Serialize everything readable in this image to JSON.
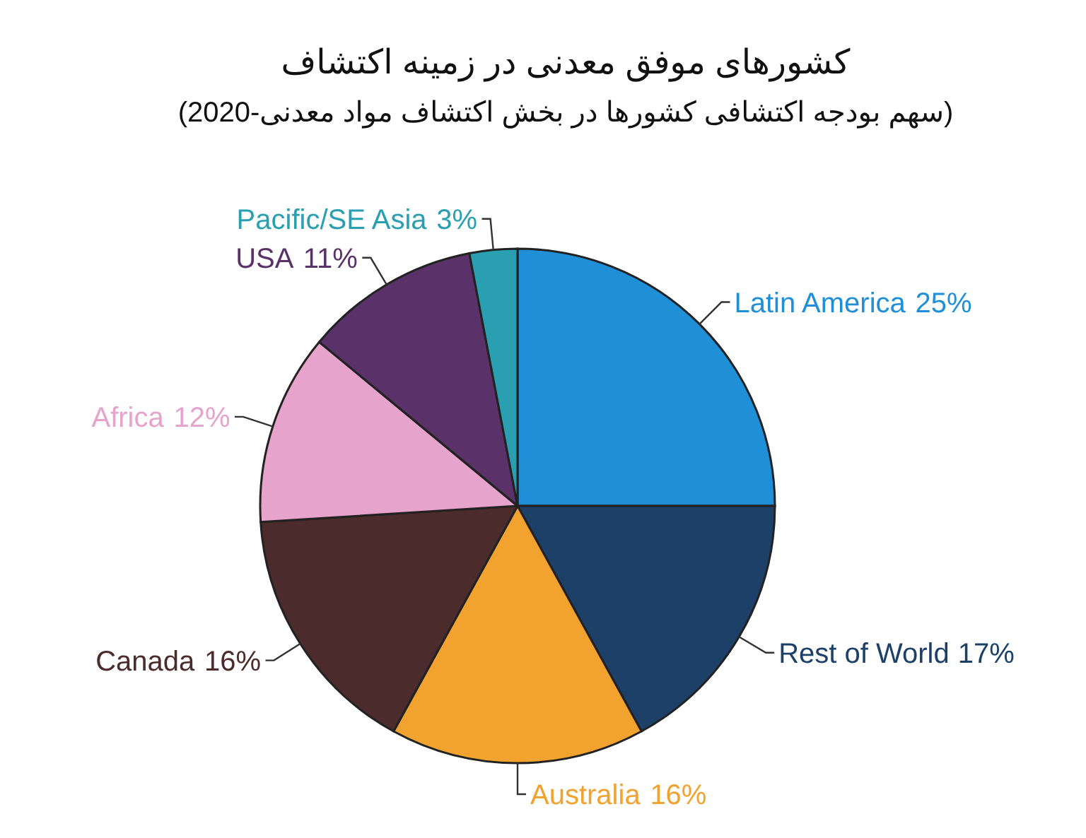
{
  "chart_data": {
    "type": "pie",
    "title": "کشورهای موفق معدنی در زمینه اکتشاف",
    "subtitle": "(سهم بودجه اکتشافی کشورها در بخش اکتشاف مواد معدنی-2020)",
    "categories": [
      "Latin America",
      "Rest of World",
      "Australia",
      "Canada",
      "Africa",
      "USA",
      "Pacific/SE Asia"
    ],
    "values": [
      25,
      17,
      16,
      16,
      12,
      11,
      3
    ],
    "colors": [
      "#1f8fd8",
      "#1c4068",
      "#f2a22e",
      "#4b2b2c",
      "#e6a3cc",
      "#5b3169",
      "#2a9fb2"
    ],
    "value_labels": [
      "25%",
      "17%",
      "16%",
      "16%",
      "12%",
      "11%",
      "3%"
    ]
  }
}
